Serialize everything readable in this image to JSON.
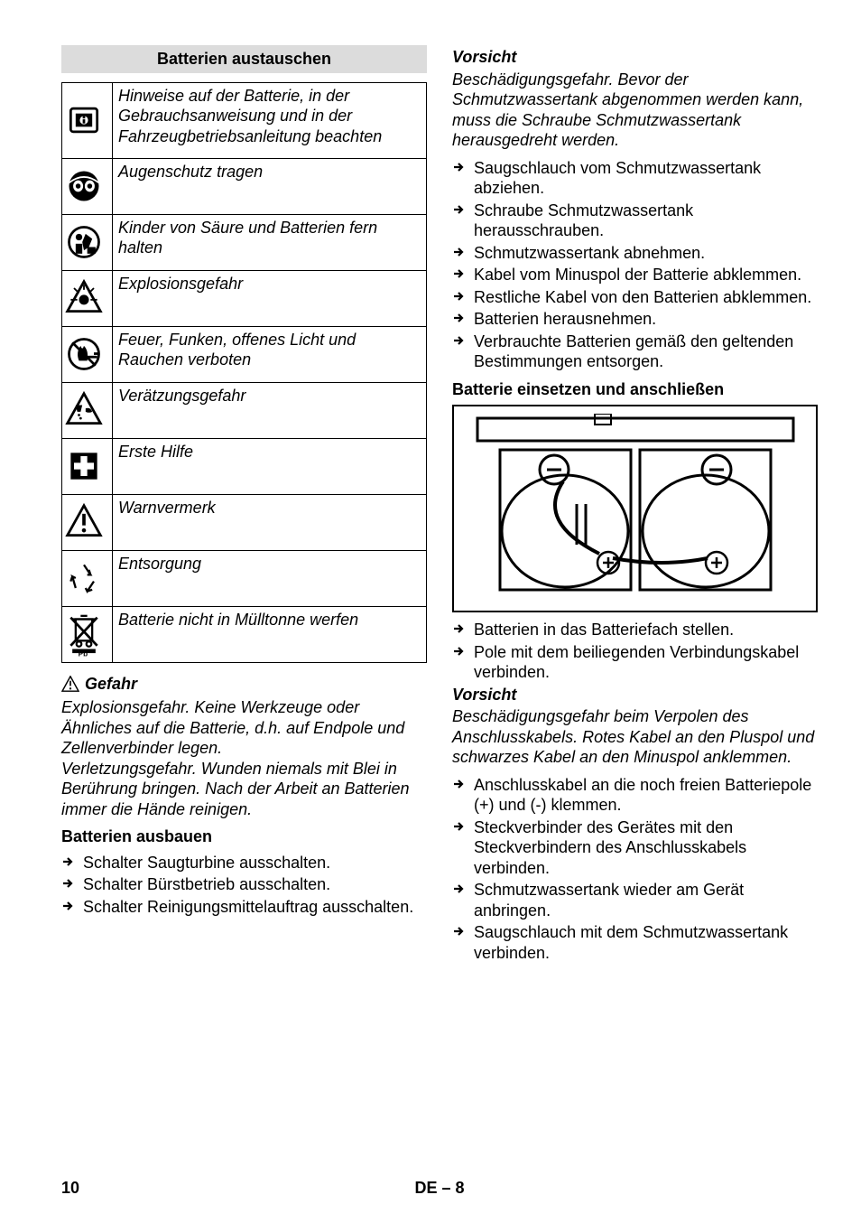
{
  "left": {
    "section_title": "Batterien austauschen",
    "icon_rows": [
      {
        "icon": "info",
        "text": "Hinweise auf der Batterie, in der Gebrauchsanweisung und in der Fahrzeugbetriebsanleitung beachten"
      },
      {
        "icon": "eye",
        "text": "Augenschutz tragen"
      },
      {
        "icon": "keepaway",
        "text": "Kinder von Säure und Batterien fern halten"
      },
      {
        "icon": "explosion",
        "text": "Explosionsgefahr"
      },
      {
        "icon": "noflames",
        "text": "Feuer, Funken, offenes Licht und Rauchen verboten"
      },
      {
        "icon": "corrosive",
        "text": "Verätzungsgefahr"
      },
      {
        "icon": "firstaid",
        "text": "Erste Hilfe"
      },
      {
        "icon": "warning",
        "text": "Warnvermerk"
      },
      {
        "icon": "recycle",
        "text": "Entsorgung"
      },
      {
        "icon": "nodustbin",
        "text": "Batterie nicht in Mülltonne werfen"
      }
    ],
    "danger_label": "Gefahr",
    "danger_text": "Explosionsgefahr. Keine Werkzeuge oder Ähnliches auf die Batterie, d.h. auf Endpole und Zellenverbinder legen.\nVerletzungsgefahr. Wunden niemals mit Blei in Berührung bringen. Nach der Arbeit an Batterien immer die Hände reinigen.",
    "remove_h": "Batterien ausbauen",
    "remove_steps": [
      "Schalter Saugturbine ausschalten.",
      "Schalter Bürstbetrieb ausschalten.",
      "Schalter Reinigungsmittelauftrag ausschalten."
    ]
  },
  "right": {
    "caution1_h": "Vorsicht",
    "caution1_text": "Beschädigungsgefahr. Bevor der Schmutzwassertank abgenommen werden kann, muss die Schraube Schmutzwassertank herausgedreht werden.",
    "steps1": [
      "Saugschlauch vom Schmutzwassertank abziehen.",
      "Schraube Schmutzwassertank herausschrauben.",
      "Schmutzwassertank abnehmen.",
      "Kabel vom Minuspol der Batterie abklemmen.",
      "Restliche Kabel von den Batterien abklemmen.",
      "Batterien herausnehmen.",
      "Verbrauchte Batterien gemäß den geltenden Bestimmungen entsorgen."
    ],
    "install_h": "Batterie einsetzen und anschließen",
    "steps2": [
      "Batterien in das Batteriefach stellen.",
      "Pole mit dem beiliegenden Verbindungskabel verbinden."
    ],
    "caution2_h": "Vorsicht",
    "caution2_text": "Beschädigungsgefahr beim Verpolen des Anschlusskabels. Rotes Kabel an den Pluspol und schwarzes Kabel an den Minuspol anklemmen.",
    "steps3": [
      "Anschlusskabel an die noch freien Batteriepole (+) und (-) klemmen.",
      "Steckverbinder des Gerätes mit den Steckverbindern des Anschlusskabels verbinden.",
      "Schmutzwassertank wieder am Gerät anbringen.",
      "Saugschlauch mit dem Schmutzwassertank verbinden."
    ]
  },
  "footer": {
    "page": "10",
    "lang": "DE – 8"
  },
  "pb_label": "Pb"
}
